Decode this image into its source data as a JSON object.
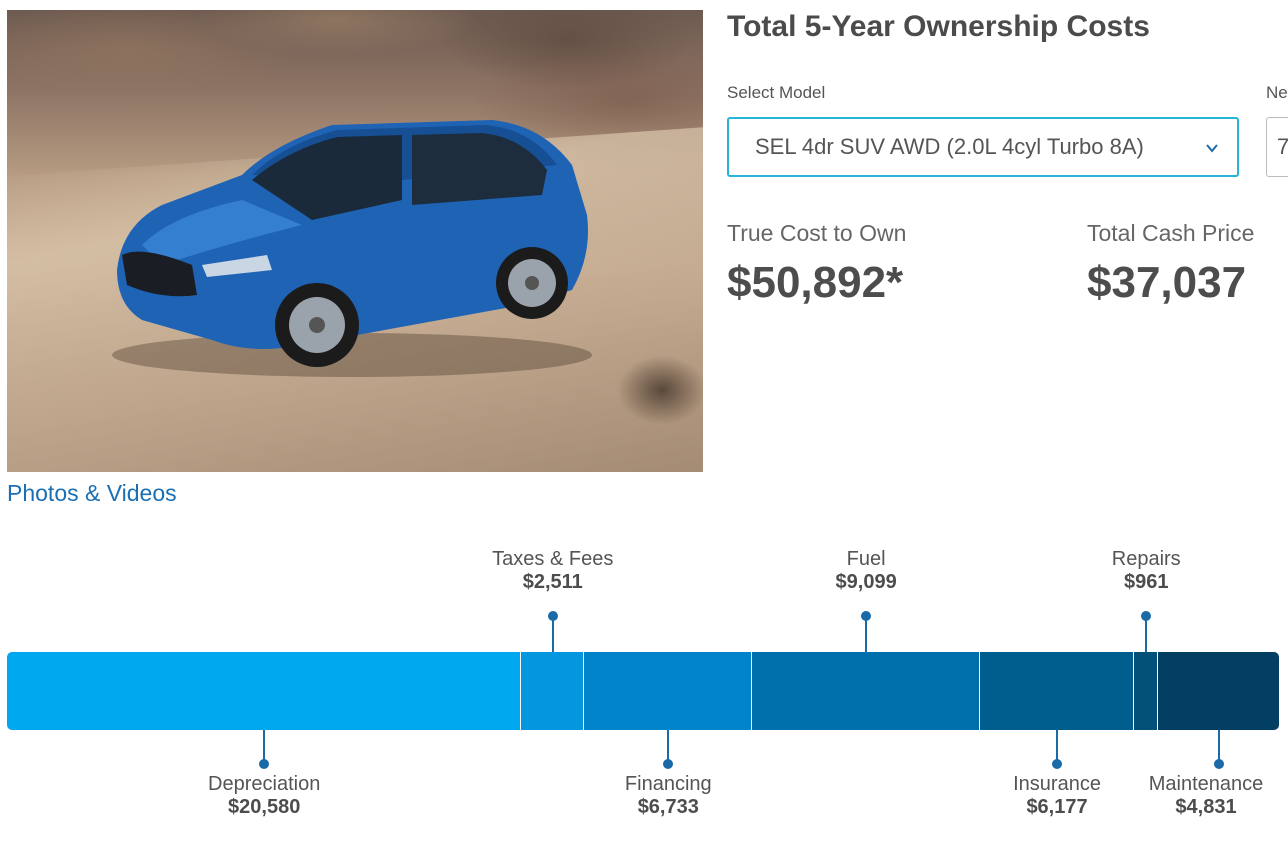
{
  "header": {
    "title": "Total 5-Year Ownership Costs"
  },
  "hero": {
    "image_alt": "Blue compact SUV driving on a dusty desert road"
  },
  "links": {
    "photos_videos": "Photos & Videos"
  },
  "model_selector": {
    "label": "Select Model",
    "value": "SEL 4dr SUV AWD (2.0L 4cyl Turbo 8A)",
    "icon": "chevron-down-icon"
  },
  "next_field": {
    "label": "Ne",
    "value": "7"
  },
  "summary": {
    "true_cost_label": "True Cost to Own",
    "true_cost_value": "$50,892*",
    "cash_price_label": "Total Cash Price",
    "cash_price_value": "$37,037"
  },
  "cost_breakdown": [
    {
      "name": "Depreciation",
      "amount": "$20,580",
      "value": 20580,
      "color": "#00a8f0",
      "label_position": "below"
    },
    {
      "name": "Taxes & Fees",
      "amount": "$2,511",
      "value": 2511,
      "color": "#0497e0",
      "label_position": "above"
    },
    {
      "name": "Financing",
      "amount": "$6,733",
      "value": 6733,
      "color": "#0184ca",
      "label_position": "below"
    },
    {
      "name": "Fuel",
      "amount": "$9,099",
      "value": 9099,
      "color": "#0070ac",
      "label_position": "above"
    },
    {
      "name": "Insurance",
      "amount": "$6,177",
      "value": 6177,
      "color": "#005e8f",
      "label_position": "below"
    },
    {
      "name": "Repairs",
      "amount": "$961",
      "value": 961,
      "color": "#035078",
      "label_position": "above"
    },
    {
      "name": "Maintenance",
      "amount": "$4,831",
      "value": 4831,
      "color": "#033f62",
      "label_position": "below"
    }
  ]
}
